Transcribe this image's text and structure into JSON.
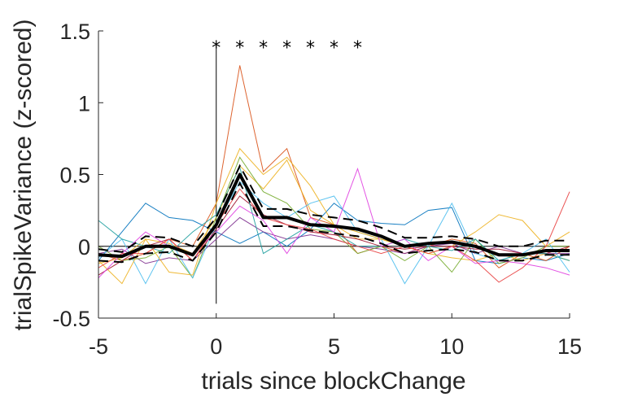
{
  "chart_data": {
    "type": "line",
    "xlabel": "trials since blockChange",
    "ylabel": "trialSpikeVariance (z-scored)",
    "xlim": [
      -5,
      15
    ],
    "ylim": [
      -0.5,
      1.5
    ],
    "xticks": [
      -5,
      0,
      5,
      10,
      15
    ],
    "yticks": [
      -0.5,
      0,
      0.5,
      1,
      1.5
    ],
    "x": [
      -5,
      -4,
      -3,
      -2,
      -1,
      0,
      1,
      2,
      3,
      4,
      5,
      6,
      7,
      8,
      9,
      10,
      11,
      12,
      13,
      14,
      15
    ],
    "individual_series": [
      {
        "color": "#0072BD",
        "values": [
          -0.1,
          0.1,
          0.3,
          0.2,
          0.18,
          0.1,
          0.02,
          0.1,
          0.0,
          0.12,
          0.3,
          0.18,
          0.16,
          0.15,
          0.25,
          0.27,
          -0.1,
          -0.12,
          -0.08,
          -0.1,
          -0.05
        ]
      },
      {
        "color": "#D95319",
        "values": [
          -0.05,
          -0.1,
          -0.05,
          0.05,
          0.0,
          0.3,
          1.26,
          0.52,
          0.68,
          0.2,
          0.15,
          -0.05,
          0.0,
          -0.05,
          0.0,
          0.05,
          0.02,
          -0.15,
          -0.05,
          -0.1,
          0.0
        ]
      },
      {
        "color": "#EDB120",
        "values": [
          -0.12,
          -0.08,
          0.05,
          0.02,
          -0.05,
          0.2,
          0.56,
          0.4,
          0.6,
          0.25,
          0.15,
          0.05,
          0.05,
          0.0,
          -0.05,
          -0.08,
          -0.1,
          -0.05,
          -0.1,
          -0.05,
          -0.1
        ]
      },
      {
        "color": "#7E2F8E",
        "values": [
          -0.05,
          -0.02,
          -0.12,
          -0.08,
          -0.1,
          0.05,
          0.2,
          0.1,
          0.05,
          0.08,
          0.05,
          0.0,
          -0.02,
          -0.05,
          0.0,
          0.02,
          -0.05,
          0.0,
          -0.05,
          -0.05,
          -0.05
        ]
      },
      {
        "color": "#77AC30",
        "values": [
          0.0,
          -0.1,
          -0.08,
          0.0,
          -0.22,
          0.2,
          0.62,
          0.38,
          0.3,
          0.12,
          0.1,
          -0.05,
          0.0,
          -0.1,
          0.0,
          -0.18,
          0.05,
          -0.12,
          -0.08,
          0.0,
          0.0
        ]
      },
      {
        "color": "#4DBEEE",
        "values": [
          -0.08,
          0.05,
          -0.26,
          0.05,
          -0.22,
          0.15,
          0.45,
          0.3,
          0.2,
          0.3,
          0.35,
          0.1,
          0.05,
          -0.26,
          0.0,
          0.3,
          -0.05,
          -0.1,
          -0.05,
          0.05,
          -0.18
        ]
      },
      {
        "color": "#A2142F",
        "values": [
          -0.2,
          -0.1,
          0.0,
          0.05,
          -0.1,
          0.12,
          0.35,
          0.22,
          0.15,
          0.1,
          0.08,
          0.05,
          0.0,
          -0.02,
          0.0,
          0.0,
          -0.02,
          -0.02,
          -0.05,
          -0.05,
          0.0
        ]
      },
      {
        "color": "#EDB120",
        "values": [
          -0.1,
          -0.26,
          0.05,
          -0.18,
          -0.2,
          0.3,
          0.68,
          0.5,
          0.62,
          0.42,
          0.15,
          0.1,
          0.05,
          0.0,
          -0.05,
          0.0,
          0.1,
          0.22,
          0.18,
          0.0,
          0.1
        ]
      },
      {
        "color": "#20A0A0",
        "values": [
          0.18,
          0.05,
          0.0,
          -0.05,
          0.1,
          0.22,
          0.55,
          -0.05,
          0.05,
          0.15,
          0.1,
          0.0,
          0.0,
          0.05,
          0.0,
          -0.03,
          0.05,
          -0.1,
          -0.05,
          -0.05,
          -0.1
        ]
      },
      {
        "color": "#E040E0",
        "values": [
          -0.22,
          -0.05,
          0.1,
          0.0,
          -0.05,
          0.1,
          0.28,
          0.18,
          -0.05,
          0.2,
          0.1,
          0.54,
          0.0,
          0.05,
          -0.1,
          0.0,
          -0.12,
          -0.1,
          -0.12,
          -0.15,
          -0.2
        ]
      },
      {
        "color": "#E84040",
        "values": [
          -0.15,
          -0.05,
          -0.05,
          0.05,
          -0.1,
          0.15,
          0.4,
          0.2,
          0.15,
          0.12,
          0.05,
          0.0,
          -0.05,
          0.0,
          -0.05,
          0.0,
          -0.1,
          -0.25,
          -0.15,
          0.0,
          0.38
        ]
      }
    ],
    "mean": [
      -0.06,
      -0.07,
      0.0,
      0.0,
      -0.06,
      0.15,
      0.5,
      0.2,
      0.2,
      0.15,
      0.14,
      0.12,
      0.07,
      0.0,
      0.02,
      0.03,
      0.0,
      -0.06,
      -0.06,
      -0.03,
      -0.03
    ],
    "sem_upper": [
      -0.02,
      -0.04,
      0.07,
      0.06,
      0.0,
      0.2,
      0.56,
      0.26,
      0.26,
      0.22,
      0.2,
      0.18,
      0.13,
      0.06,
      0.06,
      0.07,
      0.05,
      0.0,
      0.0,
      0.04,
      0.04
    ],
    "sem_lower": [
      -0.1,
      -0.11,
      -0.05,
      -0.04,
      -0.1,
      0.1,
      0.44,
      0.14,
      0.14,
      0.11,
      0.09,
      0.07,
      0.02,
      -0.05,
      -0.03,
      -0.02,
      -0.04,
      -0.1,
      -0.1,
      -0.06,
      -0.06
    ],
    "significance_x": [
      0,
      1,
      2,
      3,
      4,
      5,
      6
    ],
    "significance_marker": "*",
    "zero_lines": true
  }
}
